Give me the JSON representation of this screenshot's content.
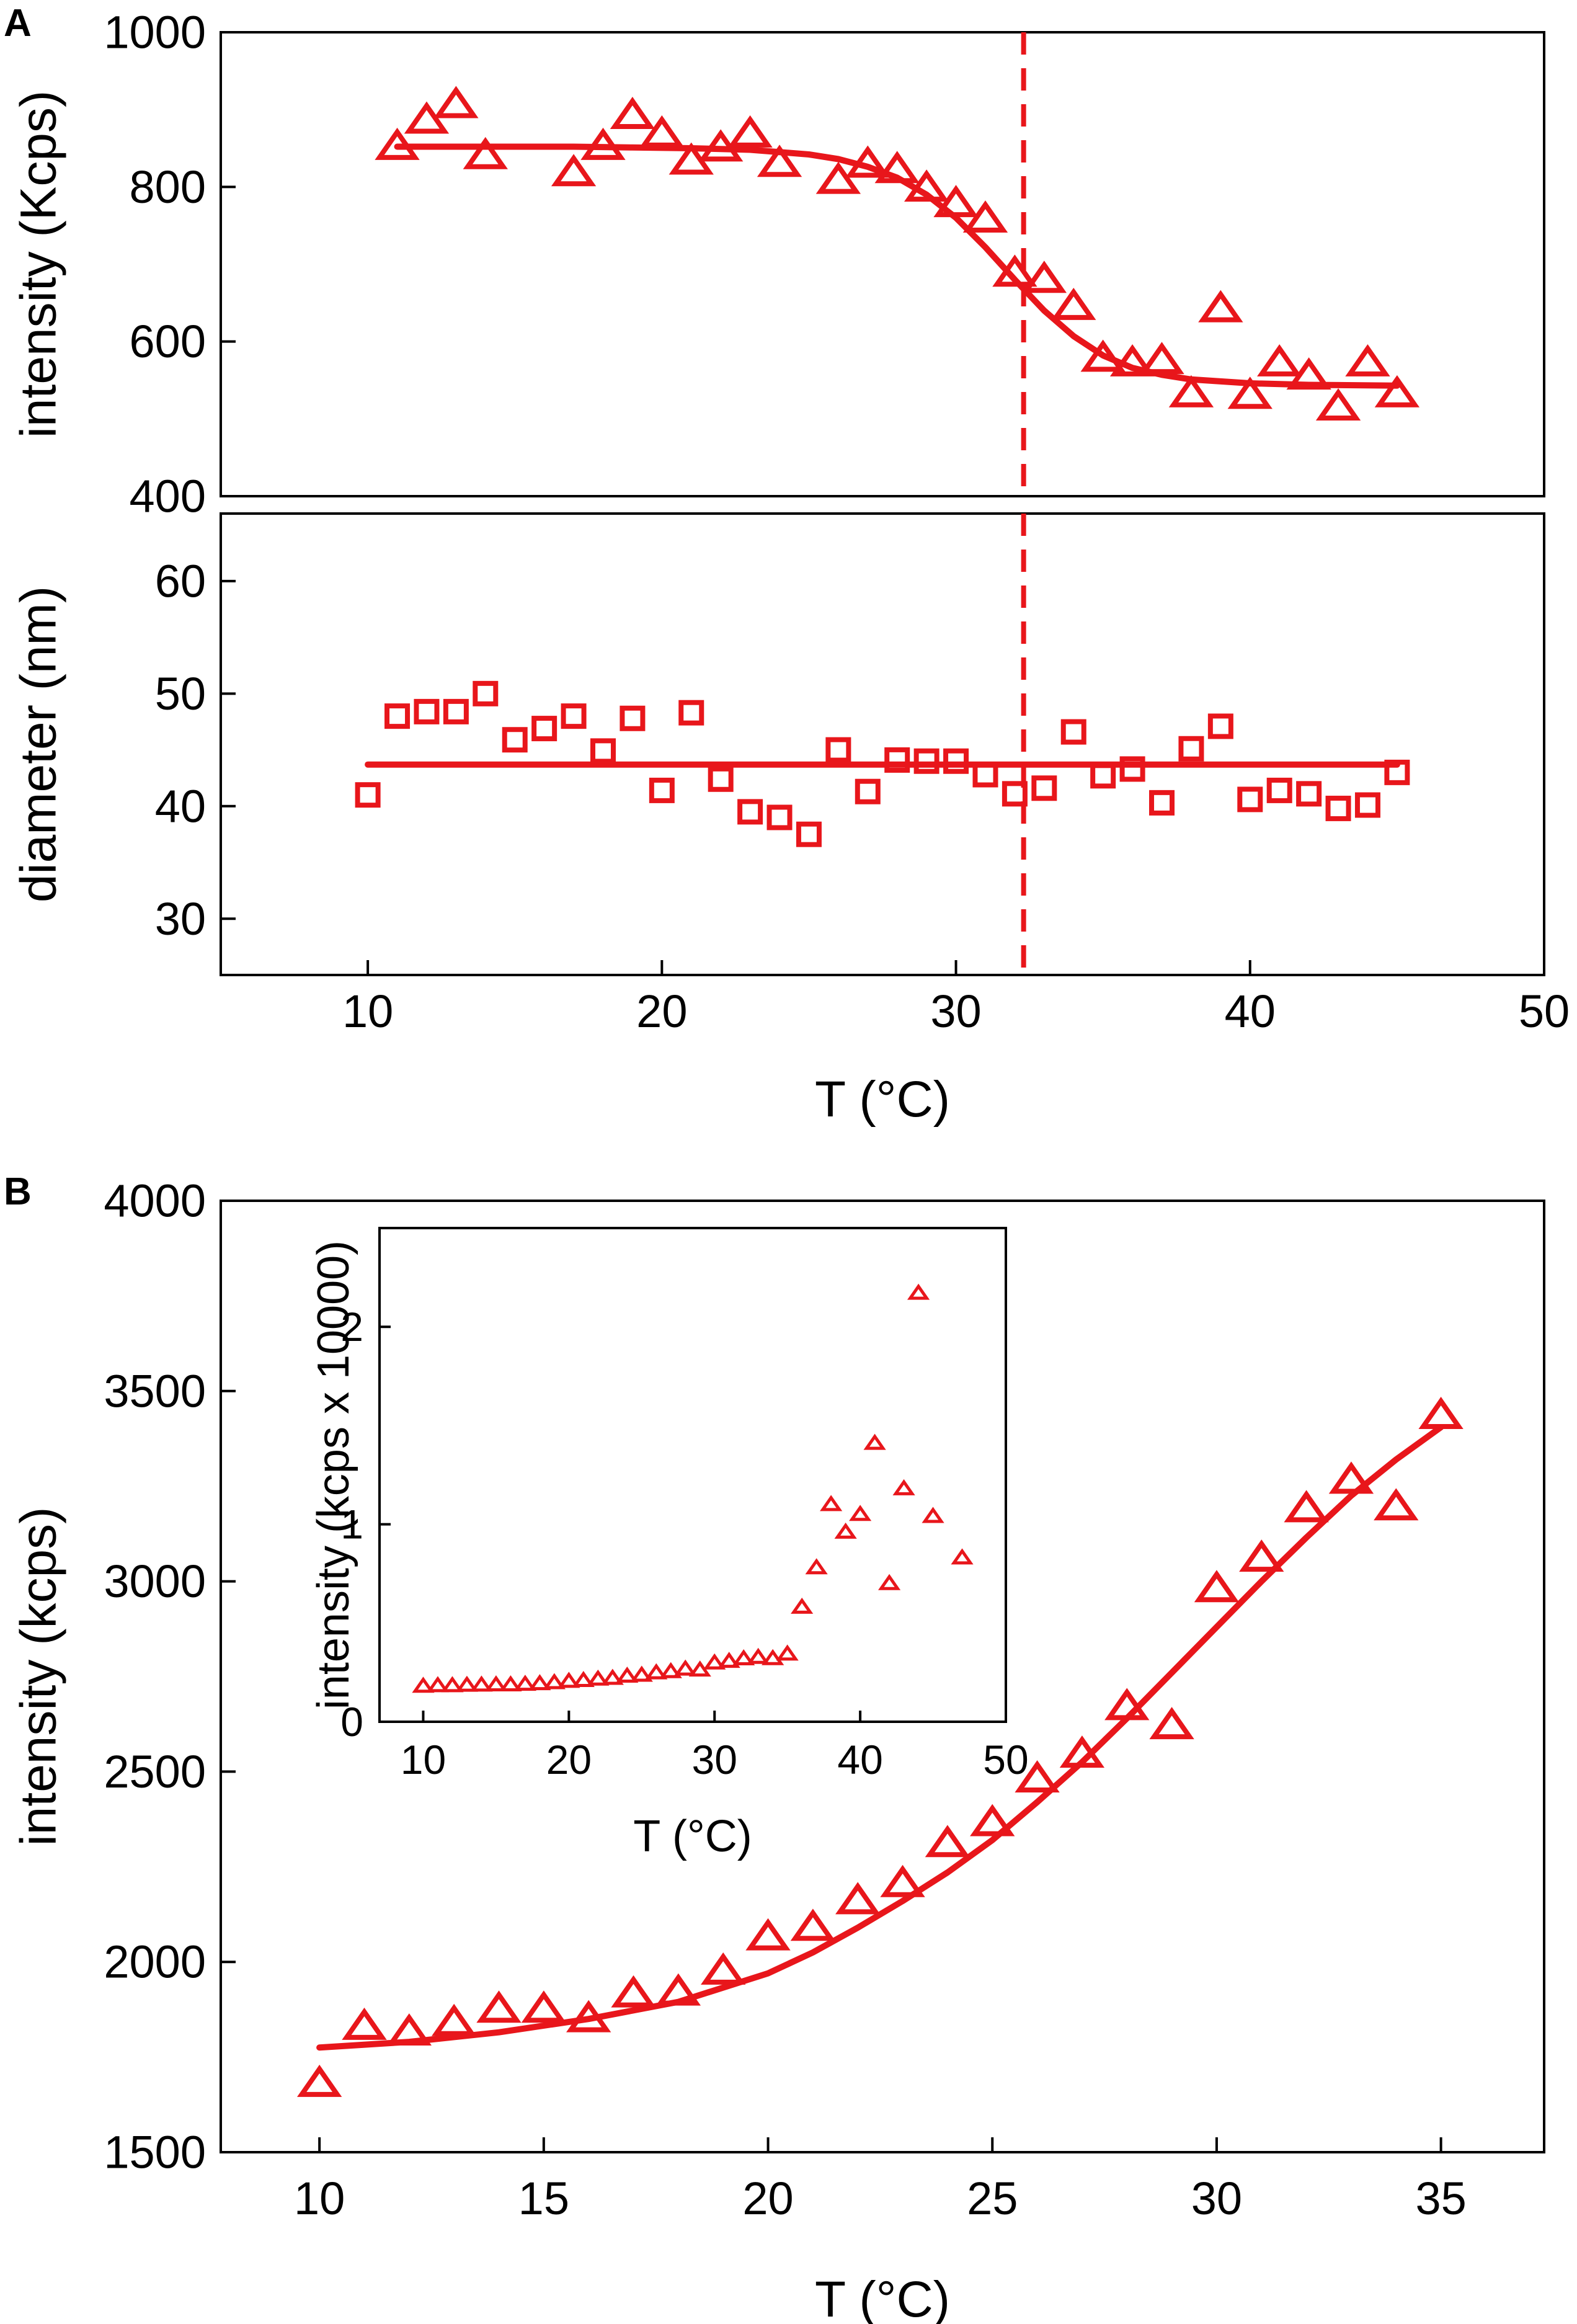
{
  "colors": {
    "series": "#e8161b",
    "axis": "#000000",
    "background": "#ffffff"
  },
  "chart_data": [
    {
      "id": "A-top",
      "panel_label": "A",
      "type": "scatter",
      "marker": "triangle",
      "xlim": [
        5,
        50
      ],
      "ylim": [
        400,
        1000
      ],
      "yticks": [
        400,
        600,
        800,
        1000
      ],
      "ytick_labels": [
        "400",
        "600",
        "800",
        "1000"
      ],
      "ylabel": "intensity (Kcps)",
      "xlabel": "",
      "points": {
        "x": [
          11,
          12,
          13,
          14,
          17,
          18,
          19,
          20,
          21,
          22,
          23,
          24,
          26,
          27,
          28,
          29,
          30,
          31,
          32,
          33,
          34,
          35,
          36,
          37,
          38,
          39,
          40,
          41,
          42,
          43,
          44,
          45
        ],
        "y": [
          852,
          886,
          906,
          840,
          818,
          852,
          892,
          868,
          833,
          850,
          868,
          830,
          808,
          829,
          822,
          798,
          778,
          758,
          688,
          680,
          645,
          578,
          572,
          575,
          532,
          642,
          530,
          572,
          555,
          515,
          572,
          532
        ]
      },
      "fit": {
        "x": [
          11,
          13,
          15,
          17,
          19,
          21,
          23,
          25,
          26,
          27,
          28,
          29,
          30,
          31,
          32,
          33,
          34,
          35,
          36,
          37,
          38,
          40,
          42,
          45
        ],
        "y": [
          852,
          852,
          852,
          852,
          851,
          850,
          848,
          842,
          836,
          826,
          812,
          790,
          760,
          722,
          680,
          640,
          607,
          582,
          566,
          557,
          551,
          546,
          544,
          543
        ]
      },
      "vline_x": 32.3
    },
    {
      "id": "A-bottom",
      "panel_label": "",
      "type": "scatter",
      "marker": "square",
      "xlim": [
        5,
        50
      ],
      "ylim": [
        25,
        66
      ],
      "yticks": [
        30,
        40,
        50,
        60
      ],
      "ytick_labels": [
        "30",
        "40",
        "50",
        "60"
      ],
      "xticks": [
        10,
        20,
        30,
        40,
        50
      ],
      "xtick_labels": [
        "10",
        "20",
        "30",
        "40",
        "50"
      ],
      "ylabel": "diameter (nm)",
      "xlabel": "T (°C)",
      "points": {
        "x": [
          10,
          11,
          12,
          13,
          14,
          15,
          16,
          17,
          18,
          19,
          20,
          21,
          22,
          23,
          24,
          25,
          26,
          27,
          28,
          29,
          30,
          31,
          32,
          33,
          34,
          35,
          36,
          37,
          38,
          39,
          40,
          41,
          42,
          43,
          44,
          45
        ],
        "y": [
          41,
          48,
          48.4,
          48.4,
          50,
          45.9,
          46.9,
          48,
          44.9,
          47.8,
          41.4,
          48.3,
          42.4,
          39.5,
          39,
          37.5,
          45,
          41.3,
          44.1,
          44,
          44,
          42.8,
          41.1,
          41.6,
          46.6,
          42.7,
          43.3,
          40.3,
          45.1,
          47.1,
          40.6,
          41.4,
          41.1,
          39.8,
          40.1,
          43
        ]
      },
      "fit": {
        "x": [
          10,
          45
        ],
        "y": [
          43.7,
          43.7
        ]
      },
      "vline_x": 32.3
    },
    {
      "id": "B-main",
      "panel_label": "B",
      "type": "scatter",
      "marker": "triangle",
      "xlim": [
        7.8,
        37.3
      ],
      "ylim": [
        1500,
        4000
      ],
      "xticks": [
        10,
        15,
        20,
        25,
        30,
        35
      ],
      "xtick_labels": [
        "10",
        "15",
        "20",
        "25",
        "30",
        "35"
      ],
      "yticks": [
        1500,
        2000,
        2500,
        3000,
        3500,
        4000
      ],
      "ytick_labels": [
        "1500",
        "2000",
        "2500",
        "3000",
        "3500",
        "4000"
      ],
      "ylabel": "intensity (kcps)",
      "xlabel": "T (°C)",
      "points": {
        "x": [
          10,
          11,
          12,
          13,
          14,
          15,
          16,
          17,
          18,
          19,
          20,
          21,
          22,
          23,
          24,
          25,
          26,
          27,
          28,
          29,
          30,
          31,
          32,
          33,
          34,
          35
        ],
        "y": [
          1680,
          1830,
          1815,
          1840,
          1875,
          1875,
          1850,
          1915,
          1920,
          1975,
          2065,
          2090,
          2160,
          2205,
          2310,
          2365,
          2480,
          2545,
          2670,
          2620,
          2980,
          3060,
          3190,
          3265,
          3195,
          3435
        ]
      },
      "fit": {
        "x": [
          10,
          12,
          14,
          16,
          18,
          20,
          21,
          22,
          23,
          24,
          25,
          26,
          27,
          28,
          29,
          30,
          31,
          32,
          33,
          34,
          35
        ],
        "y": [
          1775,
          1790,
          1815,
          1850,
          1895,
          1970,
          2025,
          2090,
          2160,
          2235,
          2320,
          2420,
          2525,
          2640,
          2760,
          2880,
          3000,
          3115,
          3225,
          3320,
          3405
        ]
      }
    },
    {
      "id": "B-inset",
      "panel_label": "",
      "type": "scatter",
      "marker": "triangle",
      "xlim": [
        7,
        50
      ],
      "ylim": [
        0,
        2.5
      ],
      "xticks": [
        10,
        20,
        30,
        40,
        50
      ],
      "xtick_labels": [
        "10",
        "20",
        "30",
        "40",
        "50"
      ],
      "yticks": [
        0,
        1,
        2
      ],
      "ytick_labels": [
        "0",
        "1",
        "2"
      ],
      "ylabel": "intensity (kcps x 10000)",
      "xlabel": "T (°C)",
      "points": {
        "x": [
          10,
          11,
          12,
          13,
          14,
          15,
          16,
          17,
          18,
          19,
          20,
          21,
          22,
          23,
          24,
          25,
          26,
          27,
          28,
          29,
          30,
          31,
          32,
          33,
          34,
          35,
          36,
          37,
          38,
          39,
          40,
          41,
          42,
          43,
          44,
          45,
          47
        ],
        "y": [
          0.18,
          0.183,
          0.183,
          0.185,
          0.186,
          0.187,
          0.187,
          0.19,
          0.193,
          0.198,
          0.205,
          0.209,
          0.216,
          0.22,
          0.231,
          0.236,
          0.248,
          0.254,
          0.267,
          0.262,
          0.298,
          0.306,
          0.319,
          0.326,
          0.32,
          0.343,
          0.58,
          0.78,
          1.1,
          0.96,
          1.05,
          1.41,
          0.7,
          1.18,
          2.17,
          1.04,
          0.83
        ]
      }
    }
  ]
}
